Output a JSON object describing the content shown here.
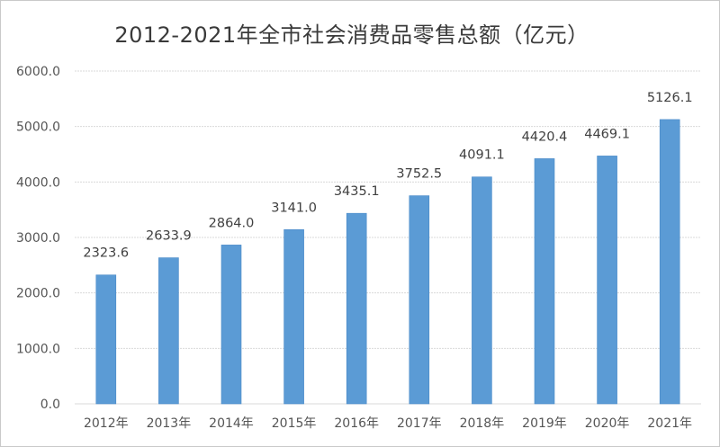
{
  "chart_data": {
    "type": "bar",
    "title": "2012-2021年全市社会消费品零售总额（亿元）",
    "xlabel": "",
    "ylabel": "",
    "categories": [
      "2012年",
      "2013年",
      "2014年",
      "2015年",
      "2016年",
      "2017年",
      "2018年",
      "2019年",
      "2020年",
      "2021年"
    ],
    "values": [
      2323.6,
      2633.9,
      2864.0,
      3141.0,
      3435.1,
      3752.5,
      4091.1,
      4420.4,
      4469.1,
      5126.1
    ],
    "data_labels": [
      "2323.6",
      "2633.9",
      "2864.0",
      "3141.0",
      "3435.1",
      "3752.5",
      "4091.1",
      "4420.4",
      "4469.1",
      "5126.1"
    ],
    "ylim": [
      0,
      6000
    ],
    "yticks": [
      0,
      1000,
      2000,
      3000,
      4000,
      5000,
      6000
    ],
    "ytick_labels": [
      "0.0",
      "1000.0",
      "2000.0",
      "3000.0",
      "4000.0",
      "5000.0",
      "6000.0"
    ],
    "grid": true,
    "legend": "none",
    "colors": {
      "bar": "#5b9bd5",
      "bar_edge": "#4a8ac8",
      "grid": "#d9d9d9",
      "text": "#404040"
    }
  }
}
